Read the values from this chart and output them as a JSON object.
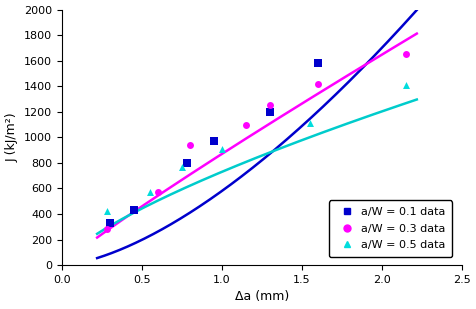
{
  "title": "",
  "xlabel": "Δa (mm)",
  "ylabel": "J (kJ/m²)",
  "xlim": [
    0,
    2.5
  ],
  "ylim": [
    0,
    2000
  ],
  "xticks": [
    0,
    0.5,
    1.0,
    1.5,
    2.0,
    2.5
  ],
  "yticks": [
    0,
    200,
    400,
    600,
    800,
    1000,
    1200,
    1400,
    1600,
    1800,
    2000
  ],
  "series": [
    {
      "label": "a/W = 0.1 data",
      "marker": "s",
      "marker_color": "#0000CC",
      "marker_size": 6,
      "data_x": [
        0.3,
        0.45,
        0.78,
        0.95,
        1.3,
        1.6
      ],
      "data_y": [
        330,
        430,
        800,
        975,
        1200,
        1580
      ],
      "C": 580,
      "n": 1.55,
      "line_color": "#0000CC",
      "line_style": "-"
    },
    {
      "label": "a/W = 0.3 data",
      "marker": "o",
      "marker_color": "#FF00FF",
      "marker_size": 5,
      "data_x": [
        0.28,
        0.6,
        0.8,
        1.15,
        1.3,
        1.6,
        2.15
      ],
      "data_y": [
        285,
        570,
        940,
        1100,
        1255,
        1415,
        1650
      ],
      "C": 870,
      "n": 0.92,
      "line_color": "#FF00FF",
      "line_style": "-"
    },
    {
      "label": "a/W = 0.5 data",
      "marker": "^",
      "marker_color": "#00DDDD",
      "marker_size": 5,
      "data_x": [
        0.28,
        0.55,
        0.75,
        1.0,
        1.55,
        2.15
      ],
      "data_y": [
        425,
        575,
        770,
        910,
        1110,
        1410
      ],
      "C": 730,
      "n": 0.72,
      "line_color": "#00CCCC",
      "line_style": "-"
    }
  ],
  "background_color": "#ffffff",
  "figsize": [
    4.76,
    3.09
  ],
  "dpi": 100
}
